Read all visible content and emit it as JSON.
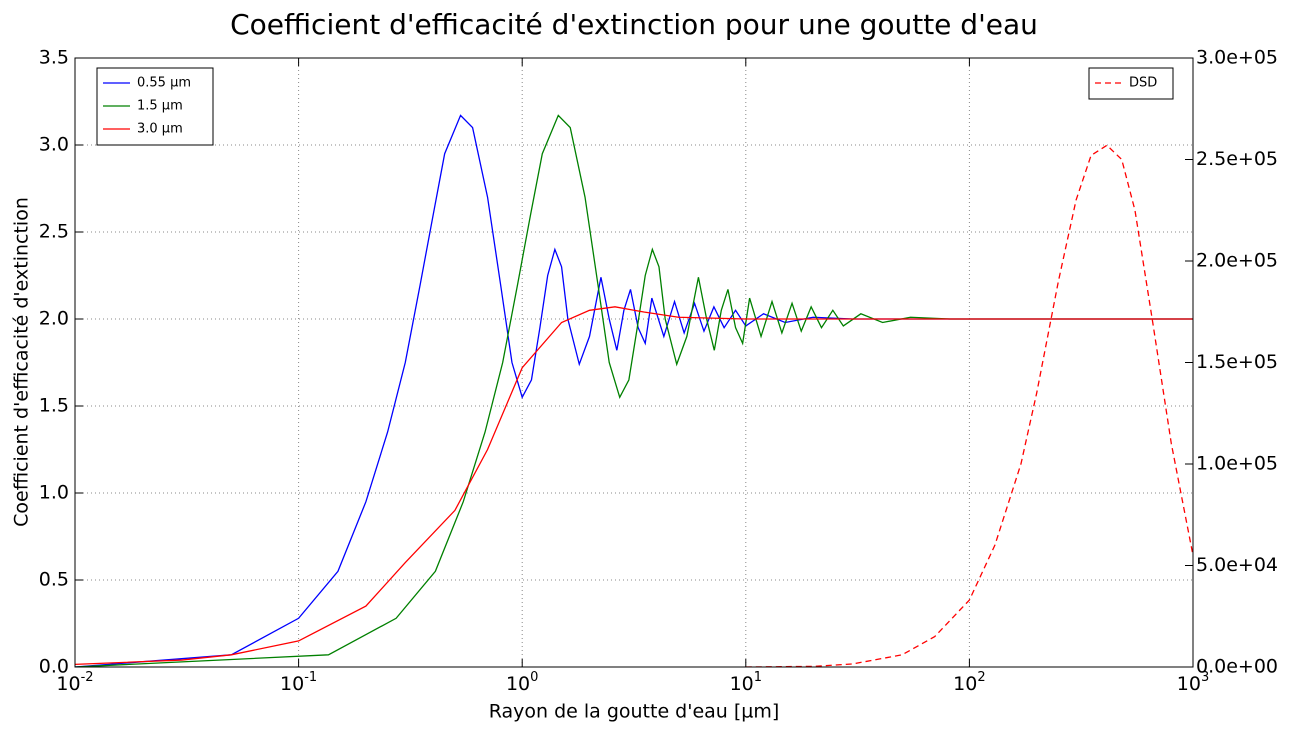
{
  "chart_data": {
    "type": "line",
    "title": "Coefficient d'efficacité d'extinction pour une goutte d'eau",
    "xlabel": "Rayon de la goutte d'eau [µm]",
    "ylabel": "Coefficient d'efficacité d'extinction",
    "xscale": "log",
    "xlim": [
      0.01,
      1000
    ],
    "xticks": [
      {
        "value": 0.01,
        "label": "10",
        "exponent": "-2"
      },
      {
        "value": 0.1,
        "label": "10",
        "exponent": "-1"
      },
      {
        "value": 1,
        "label": "10",
        "exponent": "0"
      },
      {
        "value": 10,
        "label": "10",
        "exponent": "1"
      },
      {
        "value": 100,
        "label": "10",
        "exponent": "2"
      },
      {
        "value": 1000,
        "label": "10",
        "exponent": "3"
      }
    ],
    "ylim": [
      0,
      3.5
    ],
    "yticks": [
      {
        "value": 0,
        "label": "0.0"
      },
      {
        "value": 0.5,
        "label": "0.5"
      },
      {
        "value": 1,
        "label": "1.0"
      },
      {
        "value": 1.5,
        "label": "1.5"
      },
      {
        "value": 2,
        "label": "2.0"
      },
      {
        "value": 2.5,
        "label": "2.5"
      },
      {
        "value": 3,
        "label": "3.0"
      },
      {
        "value": 3.5,
        "label": "3.5"
      }
    ],
    "y2lim": [
      0,
      300000
    ],
    "y2ticks": [
      {
        "value": 0,
        "label": "0.0e+00"
      },
      {
        "value": 50000,
        "label": "5.0e+04"
      },
      {
        "value": 100000,
        "label": "1.0e+05"
      },
      {
        "value": 150000,
        "label": "1.5e+05"
      },
      {
        "value": 200000,
        "label": "2.0e+05"
      },
      {
        "value": 250000,
        "label": "2.5e+05"
      },
      {
        "value": 300000,
        "label": "3.0e+05"
      }
    ],
    "grid": true,
    "legend": "upper left",
    "legend2": "upper right",
    "series": [
      {
        "name": "0.55 µm",
        "color": "#0000ff",
        "linestyle": "solid",
        "x": [
          0.01,
          0.05,
          0.1,
          0.15,
          0.2,
          0.25,
          0.3,
          0.35,
          0.4,
          0.45,
          0.53,
          0.6,
          0.7,
          0.8,
          0.9,
          1.0,
          1.1,
          1.2,
          1.3,
          1.4,
          1.5,
          1.6,
          1.8,
          2.0,
          2.25,
          2.45,
          2.65,
          2.85,
          3.05,
          3.3,
          3.55,
          3.8,
          4.3,
          4.8,
          5.3,
          5.9,
          6.5,
          7.2,
          8,
          9,
          10,
          12,
          15,
          20,
          30,
          1000
        ],
        "values": [
          0.0,
          0.07,
          0.28,
          0.55,
          0.95,
          1.35,
          1.75,
          2.2,
          2.6,
          2.95,
          3.17,
          3.1,
          2.7,
          2.2,
          1.75,
          1.55,
          1.65,
          1.95,
          2.25,
          2.4,
          2.3,
          2.0,
          1.74,
          1.9,
          2.24,
          2.0,
          1.82,
          2.05,
          2.17,
          1.95,
          1.86,
          2.12,
          1.9,
          2.1,
          1.92,
          2.09,
          1.93,
          2.07,
          1.95,
          2.05,
          1.96,
          2.03,
          1.98,
          2.01,
          2.0,
          2.0
        ]
      },
      {
        "name": "1.5 µm",
        "color": "#008000",
        "linestyle": "solid",
        "x": [
          0.01,
          0.136,
          0.273,
          0.409,
          0.545,
          0.682,
          0.818,
          0.954,
          1.09,
          1.23,
          1.45,
          1.64,
          1.91,
          2.18,
          2.45,
          2.73,
          3.0,
          3.27,
          3.55,
          3.82,
          4.09,
          4.36,
          4.91,
          5.45,
          6.14,
          6.68,
          7.23,
          7.77,
          8.32,
          9.0,
          9.68,
          10.4,
          11.7,
          13.1,
          14.5,
          16.1,
          17.7,
          19.6,
          21.8,
          24.5,
          27.3,
          32.7,
          40.9,
          54.5,
          81.8,
          1000
        ],
        "values": [
          0.0,
          0.07,
          0.28,
          0.55,
          0.95,
          1.35,
          1.75,
          2.2,
          2.6,
          2.95,
          3.17,
          3.1,
          2.7,
          2.2,
          1.75,
          1.55,
          1.65,
          1.95,
          2.25,
          2.4,
          2.3,
          2.0,
          1.74,
          1.9,
          2.24,
          2.0,
          1.82,
          2.05,
          2.17,
          1.95,
          1.86,
          2.12,
          1.9,
          2.1,
          1.92,
          2.09,
          1.93,
          2.07,
          1.95,
          2.05,
          1.96,
          2.03,
          1.98,
          2.01,
          2.0,
          2.0
        ]
      },
      {
        "name": "3.0 µm",
        "color": "#ff0000",
        "linestyle": "solid",
        "x": [
          0.01,
          0.03,
          0.05,
          0.1,
          0.2,
          0.3,
          0.5,
          0.7,
          1.0,
          1.5,
          2.0,
          2.6,
          3.5,
          5,
          10,
          1000
        ],
        "values": [
          0.015,
          0.04,
          0.07,
          0.15,
          0.35,
          0.6,
          0.9,
          1.25,
          1.72,
          1.98,
          2.05,
          2.07,
          2.04,
          2.01,
          2.0,
          2.0
        ]
      },
      {
        "name": "DSD",
        "color": "#ff0000",
        "linestyle": "dashed",
        "axis": "y2",
        "x": [
          10,
          20,
          30,
          50,
          70,
          100,
          130,
          170,
          200,
          250,
          300,
          350,
          412,
          480,
          550,
          660,
          800,
          1000
        ],
        "values": [
          0,
          300,
          1500,
          6000,
          15000,
          33000,
          60000,
          100000,
          135000,
          190000,
          230000,
          252000,
          257000,
          250000,
          225000,
          170000,
          110000,
          55000
        ]
      }
    ]
  }
}
